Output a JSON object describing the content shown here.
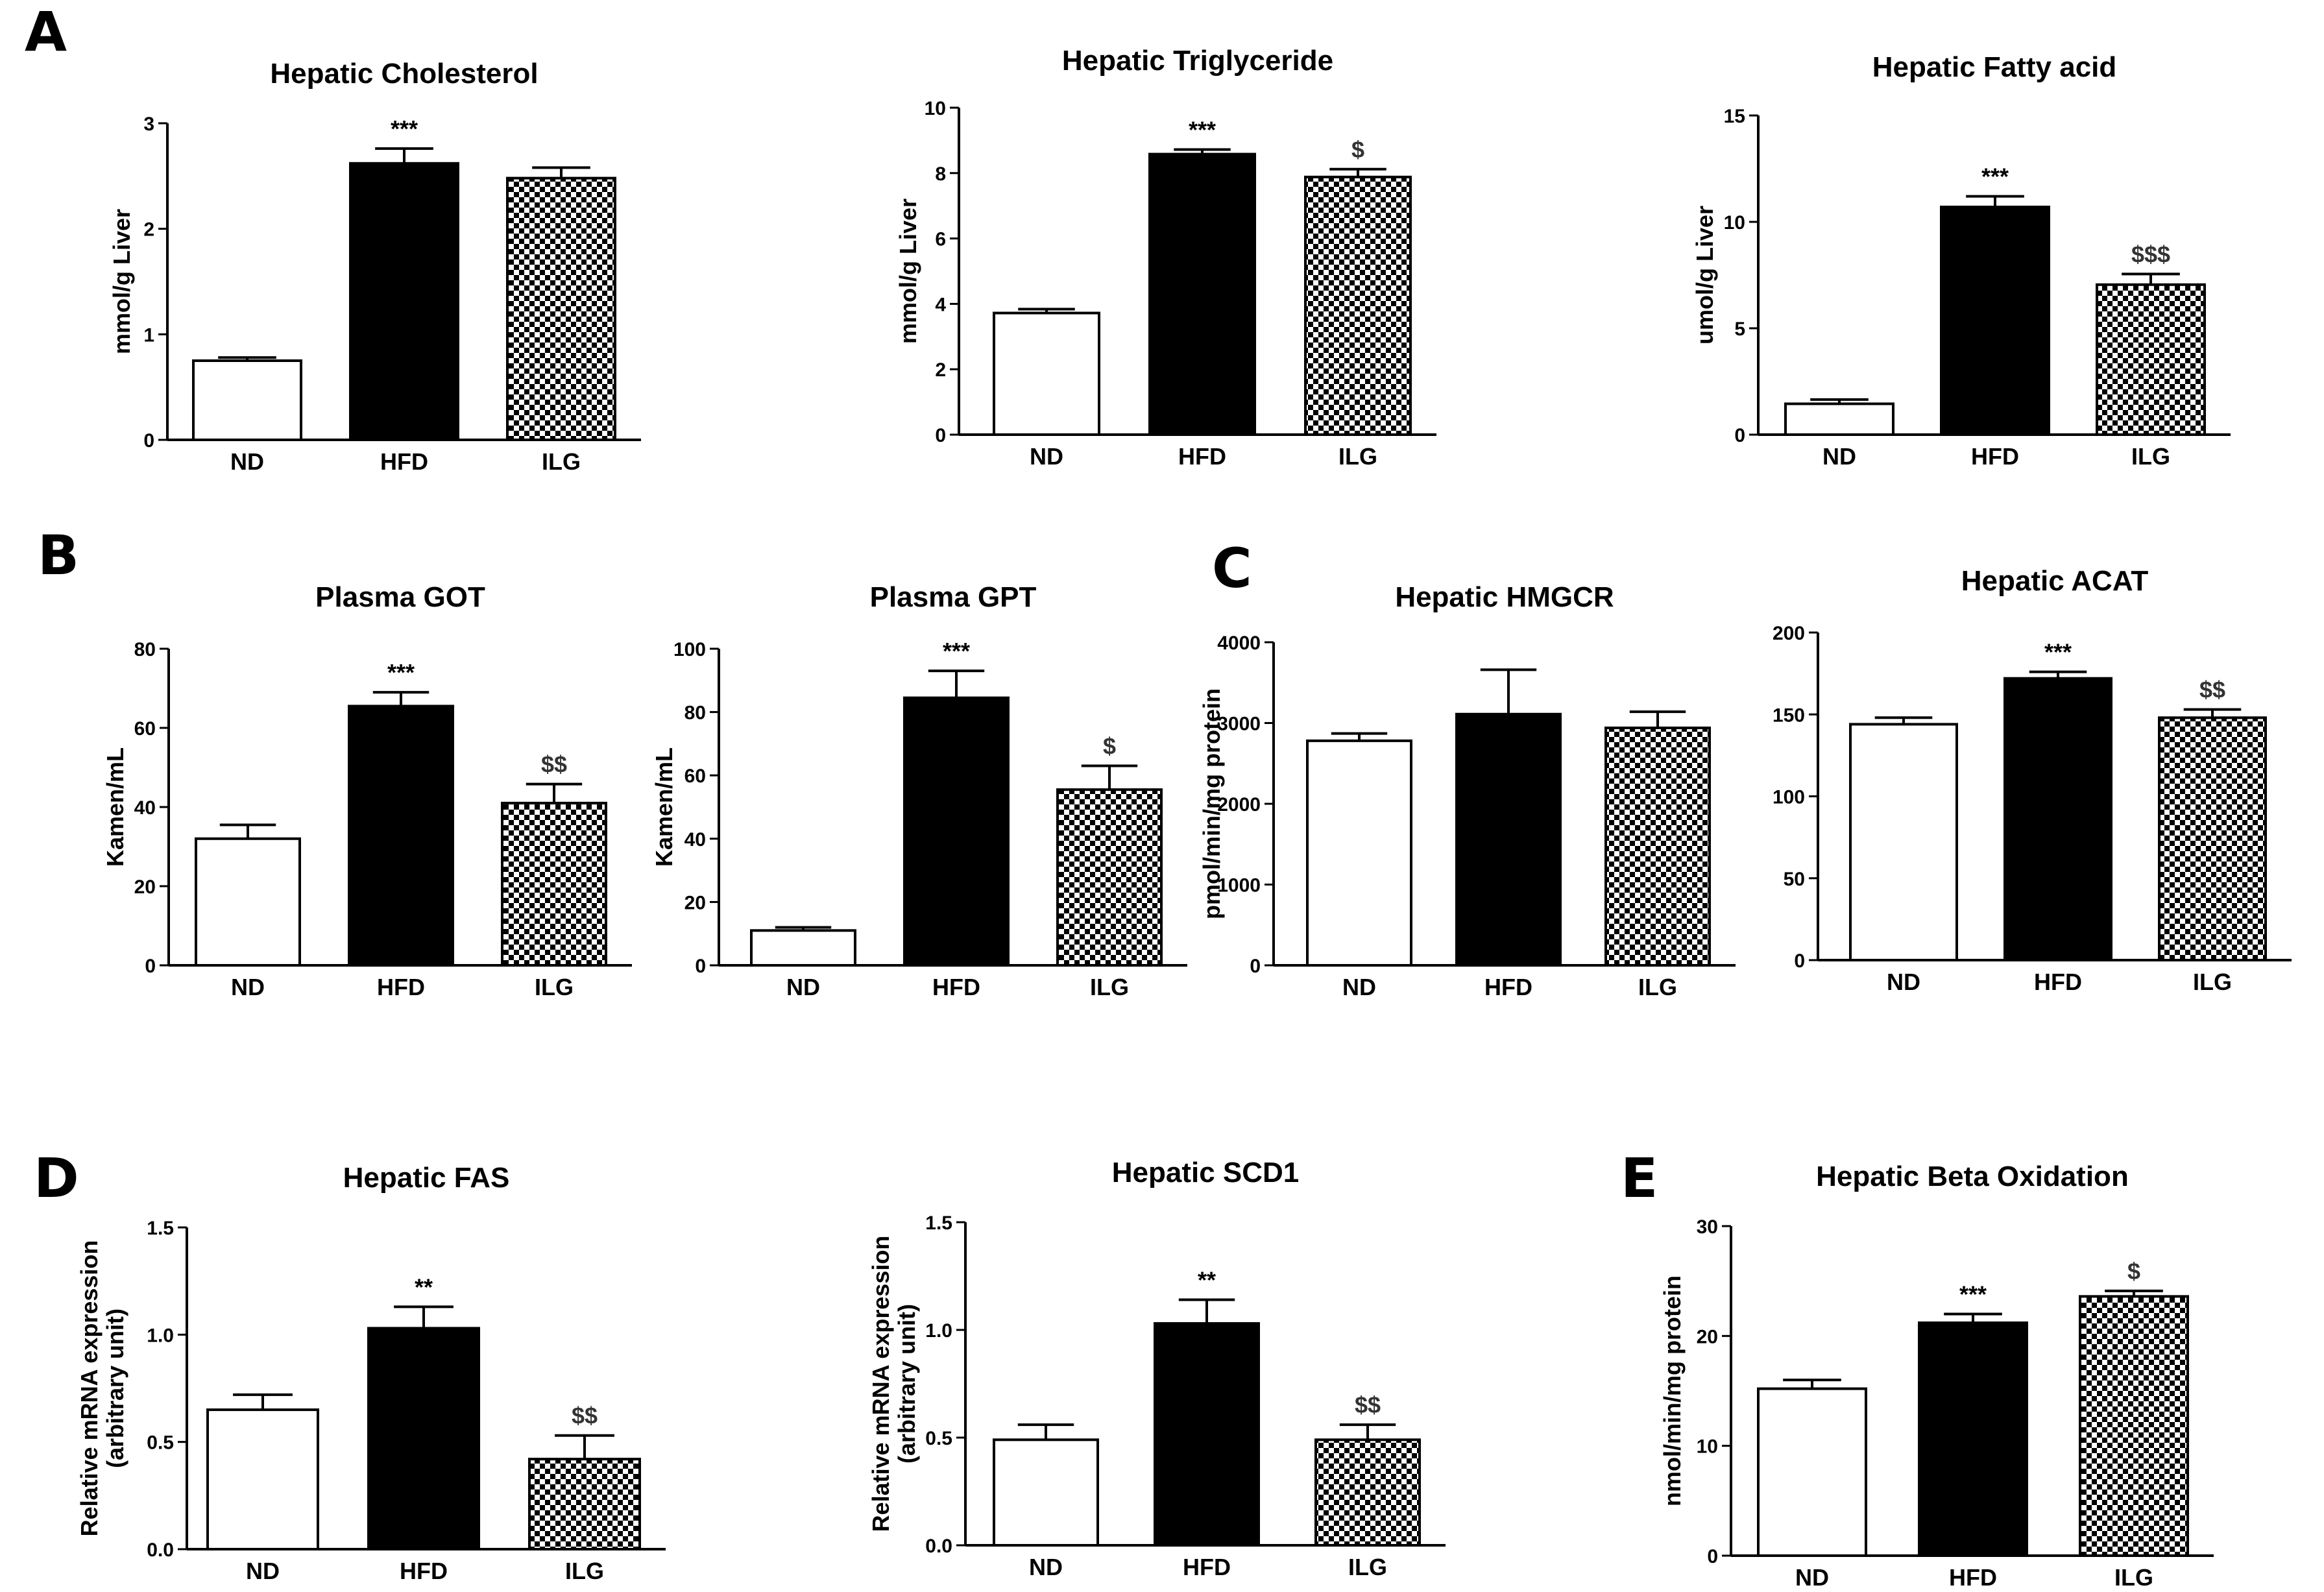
{
  "panel_letters": [
    "A",
    "B",
    "C",
    "D",
    "E"
  ],
  "colors": {
    "ND": "#ffffff",
    "HFD": "#000000",
    "ILG": "checkerboard",
    "stroke": "#000000"
  },
  "chart_data": [
    {
      "type": "bar",
      "panel": "A",
      "title": "Hepatic Cholesterol",
      "ylabel": "mmol/g Liver",
      "categories": [
        "ND",
        "HFD",
        "ILG"
      ],
      "values": [
        0.75,
        2.62,
        2.48
      ],
      "errors": [
        0.03,
        0.14,
        0.1
      ],
      "ylim": [
        0,
        3
      ],
      "yticks": [
        0,
        1,
        2,
        3
      ],
      "tick_labels": [
        "0",
        "1",
        "2",
        "3"
      ],
      "annotations": [
        "",
        "***",
        ""
      ]
    },
    {
      "type": "bar",
      "panel": "A",
      "title": "Hepatic Triglyceride",
      "ylabel": "mmol/g Liver",
      "categories": [
        "ND",
        "HFD",
        "ILG"
      ],
      "values": [
        3.72,
        8.58,
        7.88
      ],
      "errors": [
        0.12,
        0.14,
        0.24
      ],
      "ylim": [
        0,
        10
      ],
      "yticks": [
        0,
        2,
        4,
        6,
        8,
        10
      ],
      "tick_labels": [
        "0",
        "2",
        "4",
        "6",
        "8",
        "10"
      ],
      "annotations": [
        "",
        "***",
        "$"
      ]
    },
    {
      "type": "bar",
      "panel": "A",
      "title": "Hepatic Fatty acid",
      "ylabel": "umol/g Liver",
      "categories": [
        "ND",
        "HFD",
        "ILG"
      ],
      "values": [
        1.45,
        10.7,
        7.05
      ],
      "errors": [
        0.2,
        0.5,
        0.5
      ],
      "ylim": [
        0,
        15
      ],
      "yticks": [
        0,
        5,
        10,
        15
      ],
      "tick_labels": [
        "0",
        "5",
        "10",
        "15"
      ],
      "annotations": [
        "",
        "***",
        "$$$"
      ]
    },
    {
      "type": "bar",
      "panel": "B",
      "title": "Plasma GOT",
      "ylabel": "Kamen/mL",
      "categories": [
        "ND",
        "HFD",
        "ILG"
      ],
      "values": [
        32,
        65.5,
        41
      ],
      "errors": [
        3.5,
        3.5,
        4.8
      ],
      "ylim": [
        0,
        80
      ],
      "yticks": [
        0,
        20,
        40,
        60,
        80
      ],
      "tick_labels": [
        "0",
        "20",
        "40",
        "60",
        "80"
      ],
      "annotations": [
        "",
        "***",
        "$$"
      ]
    },
    {
      "type": "bar",
      "panel": "B",
      "title": "Plasma GPT",
      "ylabel": "Kamen/mL",
      "categories": [
        "ND",
        "HFD",
        "ILG"
      ],
      "values": [
        11,
        84.5,
        55.5
      ],
      "errors": [
        1,
        8.5,
        7.5
      ],
      "ylim": [
        0,
        100
      ],
      "yticks": [
        0,
        20,
        40,
        60,
        80,
        100
      ],
      "tick_labels": [
        "0",
        "20",
        "40",
        "60",
        "80",
        "100"
      ],
      "annotations": [
        "",
        "***",
        "$"
      ]
    },
    {
      "type": "bar",
      "panel": "C",
      "title": "Hepatic HMGCR",
      "ylabel": "pmol/min/mg protein",
      "categories": [
        "ND",
        "HFD",
        "ILG"
      ],
      "values": [
        2780,
        3110,
        2940
      ],
      "errors": [
        90,
        550,
        200
      ],
      "ylim": [
        0,
        4000
      ],
      "yticks": [
        0,
        1000,
        2000,
        3000,
        4000
      ],
      "tick_labels": [
        "0",
        "1000",
        "2000",
        "3000",
        "4000"
      ],
      "annotations": [
        "",
        "",
        ""
      ]
    },
    {
      "type": "bar",
      "panel": "C",
      "title": "Hepatic ACAT",
      "ylabel": "",
      "categories": [
        "ND",
        "HFD",
        "ILG"
      ],
      "values": [
        144,
        172,
        148
      ],
      "errors": [
        4,
        4,
        5
      ],
      "ylim": [
        0,
        200
      ],
      "yticks": [
        0,
        50,
        100,
        150,
        200
      ],
      "tick_labels": [
        "0",
        "50",
        "100",
        "150",
        "200"
      ],
      "annotations": [
        "",
        "***",
        "$$"
      ]
    },
    {
      "type": "bar",
      "panel": "D",
      "title": "Hepatic FAS",
      "ylabel": "Relative mRNA expression (arbitrary unit)",
      "ylabel_lines": [
        "Relative mRNA expression",
        "(arbitrary unit)"
      ],
      "categories": [
        "ND",
        "HFD",
        "ILG"
      ],
      "values": [
        0.65,
        1.03,
        0.42
      ],
      "errors": [
        0.07,
        0.1,
        0.11
      ],
      "ylim": [
        0,
        1.5
      ],
      "yticks": [
        0,
        0.5,
        1.0,
        1.5
      ],
      "tick_labels": [
        "0.0",
        "0.5",
        "1.0",
        "1.5"
      ],
      "annotations": [
        "",
        "**",
        "$$"
      ]
    },
    {
      "type": "bar",
      "panel": "D",
      "title": "Hepatic SCD1",
      "ylabel": "Relative mRNA expression (arbitrary unit)",
      "ylabel_lines": [
        "Relative mRNA expression",
        "(arbitrary unit)"
      ],
      "categories": [
        "ND",
        "HFD",
        "ILG"
      ],
      "values": [
        0.49,
        1.03,
        0.49
      ],
      "errors": [
        0.07,
        0.11,
        0.07
      ],
      "ylim": [
        0,
        1.5
      ],
      "yticks": [
        0,
        0.5,
        1.0,
        1.5
      ],
      "tick_labels": [
        "0.0",
        "0.5",
        "1.0",
        "1.5"
      ],
      "annotations": [
        "",
        "**",
        "$$"
      ]
    },
    {
      "type": "bar",
      "panel": "E",
      "title": "Hepatic Beta Oxidation",
      "ylabel": "nmol/min/mg protein",
      "categories": [
        "ND",
        "HFD",
        "ILG"
      ],
      "values": [
        15.2,
        21.2,
        23.6
      ],
      "errors": [
        0.8,
        0.8,
        0.5
      ],
      "ylim": [
        0,
        30
      ],
      "yticks": [
        0,
        10,
        20,
        30
      ],
      "tick_labels": [
        "0",
        "10",
        "20",
        "30"
      ],
      "annotations": [
        "",
        "***",
        "$"
      ]
    }
  ]
}
